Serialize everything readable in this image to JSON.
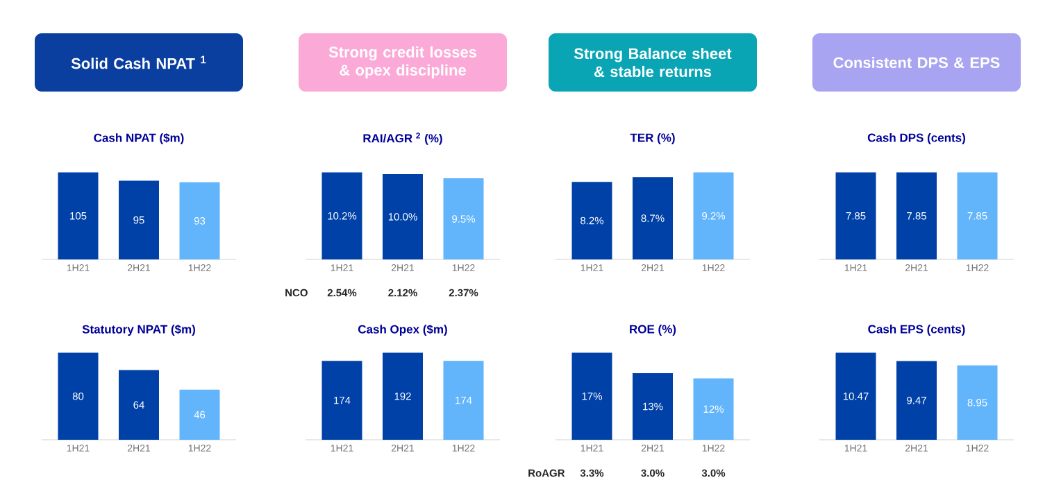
{
  "chart_data": [
    {
      "type": "bar",
      "title": "Solid Cash NPAT $^{1}$",
      "subtitle": "Cash NPAT ($m)",
      "categories": [
        "1H21",
        "2H21",
        "1H22"
      ],
      "values": [
        105,
        95,
        93
      ],
      "colors": [
        "#0041a8",
        "#0041a8",
        "#62b4fb"
      ],
      "value_labels": [
        "105",
        "95",
        "93"
      ],
      "tick_labels": "x"
    },
    {
      "type": "bar",
      "title": "Strong credit losses & opex discipline",
      "subtitle": "RAI/AGR $^{2}$ (%)",
      "categories": [
        "1H21",
        "2H21",
        "1H22"
      ],
      "values": [
        10.2,
        10.0,
        9.5
      ],
      "colors": [
        "#0041a8",
        "#0041a8",
        "#62b4fb"
      ],
      "value_labels": [
        "10.2%",
        "10.0%",
        "9.5%"
      ],
      "annotations": [
        "NCO",
        "2.54%",
        "2.12%",
        "2.37%"
      ],
      "tick_labels": "x"
    },
    {
      "type": "bar",
      "title": "Strong Balance sheet & stable returns",
      "subtitle": "TER (%)",
      "categories": [
        "1H21",
        "2H21",
        "1H22"
      ],
      "values": [
        8.2,
        8.7,
        9.2
      ],
      "colors": [
        "#0041a8",
        "#0041a8",
        "#62b4fb"
      ],
      "value_labels": [
        "8.2%",
        "8.7%",
        "9.2%"
      ],
      "tick_labels": "x"
    },
    {
      "type": "bar",
      "title": "Consistent DPS & EPS",
      "subtitle": "Cash DPS (cents)",
      "categories": [
        "1H21",
        "2H21",
        "1H22"
      ],
      "values": [
        7.85,
        7.85,
        7.85
      ],
      "colors": [
        "#0041a8",
        "#0041a8",
        "#62b4fb"
      ],
      "value_labels": [
        "7.85",
        "7.85",
        "7.85"
      ],
      "tick_labels": "x"
    },
    {
      "type": "bar",
      "title": "Statutory NPAT ($m)",
      "categories": [
        "1H21",
        "2H21",
        "1H22"
      ],
      "values": [
        80,
        64,
        46
      ],
      "colors": [
        "#0041a8",
        "#0041a8",
        "#62b4fb"
      ],
      "value_labels": [
        "80",
        "64",
        "46"
      ],
      "tick_labels": "x"
    },
    {
      "type": "bar",
      "title": "Cash Opex ($m)",
      "categories": [
        "1H21",
        "2H21",
        "1H22"
      ],
      "values": [
        174,
        192,
        174
      ],
      "colors": [
        "#0041a8",
        "#0041a8",
        "#62b4fb"
      ],
      "value_labels": [
        "174",
        "192",
        "174"
      ],
      "tick_labels": "x"
    },
    {
      "type": "bar",
      "title": "ROE (%)",
      "categories": [
        "1H21",
        "2H21",
        "1H22"
      ],
      "values": [
        17,
        13,
        12
      ],
      "colors": [
        "#0041a8",
        "#0041a8",
        "#62b4fb"
      ],
      "value_labels": [
        "17%",
        "13%",
        "12%"
      ],
      "annotations": [
        "RoAGR",
        "3.3%",
        "3.0%",
        "3.0%"
      ],
      "tick_labels": "x"
    },
    {
      "type": "bar",
      "title": "Cash EPS (cents)",
      "categories": [
        "1H21",
        "2H21",
        "1H22"
      ],
      "values": [
        10.47,
        9.47,
        8.95
      ],
      "colors": [
        "#0041a8",
        "#0041a8",
        "#62b4fb"
      ],
      "value_labels": [
        "10.47",
        "9.47",
        "8.95"
      ],
      "tick_labels": "x"
    }
  ]
}
